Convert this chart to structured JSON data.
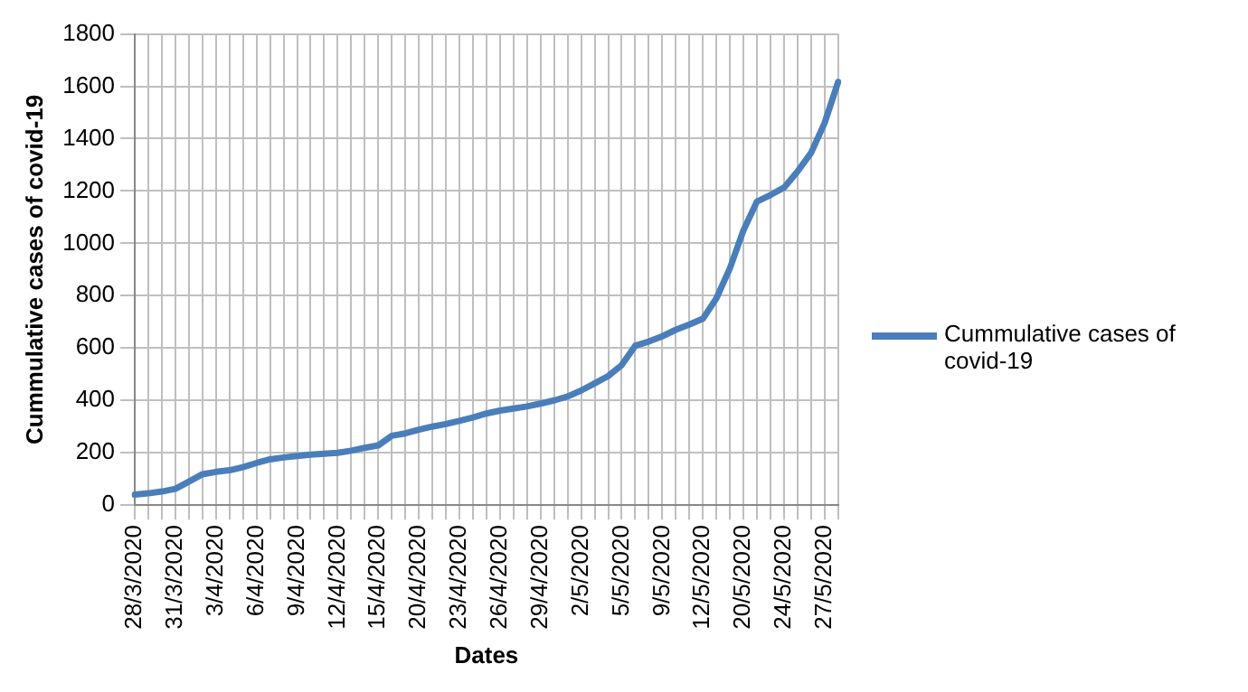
{
  "chart_data": {
    "type": "line",
    "xlabel": "Dates",
    "ylabel": "Cummulative cases of covid-19",
    "categories": [
      "28/3/2020",
      null,
      null,
      "31/3/2020",
      null,
      null,
      "3/4/2020",
      null,
      null,
      "6/4/2020",
      null,
      null,
      "9/4/2020",
      null,
      null,
      "12/4/2020",
      null,
      null,
      "15/4/2020",
      null,
      null,
      "20/4/2020",
      null,
      null,
      "23/4/2020",
      null,
      null,
      "26/4/2020",
      null,
      null,
      "29/4/2020",
      null,
      null,
      "2/5/2020",
      null,
      null,
      "5/5/2020",
      null,
      null,
      "9/5/2020",
      null,
      null,
      "12/5/2020",
      null,
      null,
      "20/5/2020",
      null,
      null,
      "24/5/2020",
      null,
      null,
      "27/5/2020",
      null
    ],
    "series": [
      {
        "name": "Cummulative cases of covid-19",
        "color": "#4a7ebb",
        "values": [
          40,
          45,
          52,
          62,
          90,
          118,
          127,
          133,
          145,
          161,
          175,
          182,
          188,
          193,
          196,
          200,
          208,
          219,
          228,
          265,
          274,
          288,
          300,
          310,
          322,
          335,
          350,
          361,
          369,
          377,
          388,
          400,
          415,
          438,
          465,
          493,
          535,
          609,
          625,
          645,
          670,
          690,
          712,
          790,
          905,
          1050,
          1160,
          1185,
          1213,
          1275,
          1346,
          1460,
          1617
        ]
      }
    ],
    "ylim": [
      0,
      1800
    ],
    "yticks": [
      0,
      200,
      400,
      600,
      800,
      1000,
      1200,
      1400,
      1600,
      1800
    ],
    "grid": true,
    "legend": "right",
    "marker": "none",
    "line_style": "solid"
  }
}
